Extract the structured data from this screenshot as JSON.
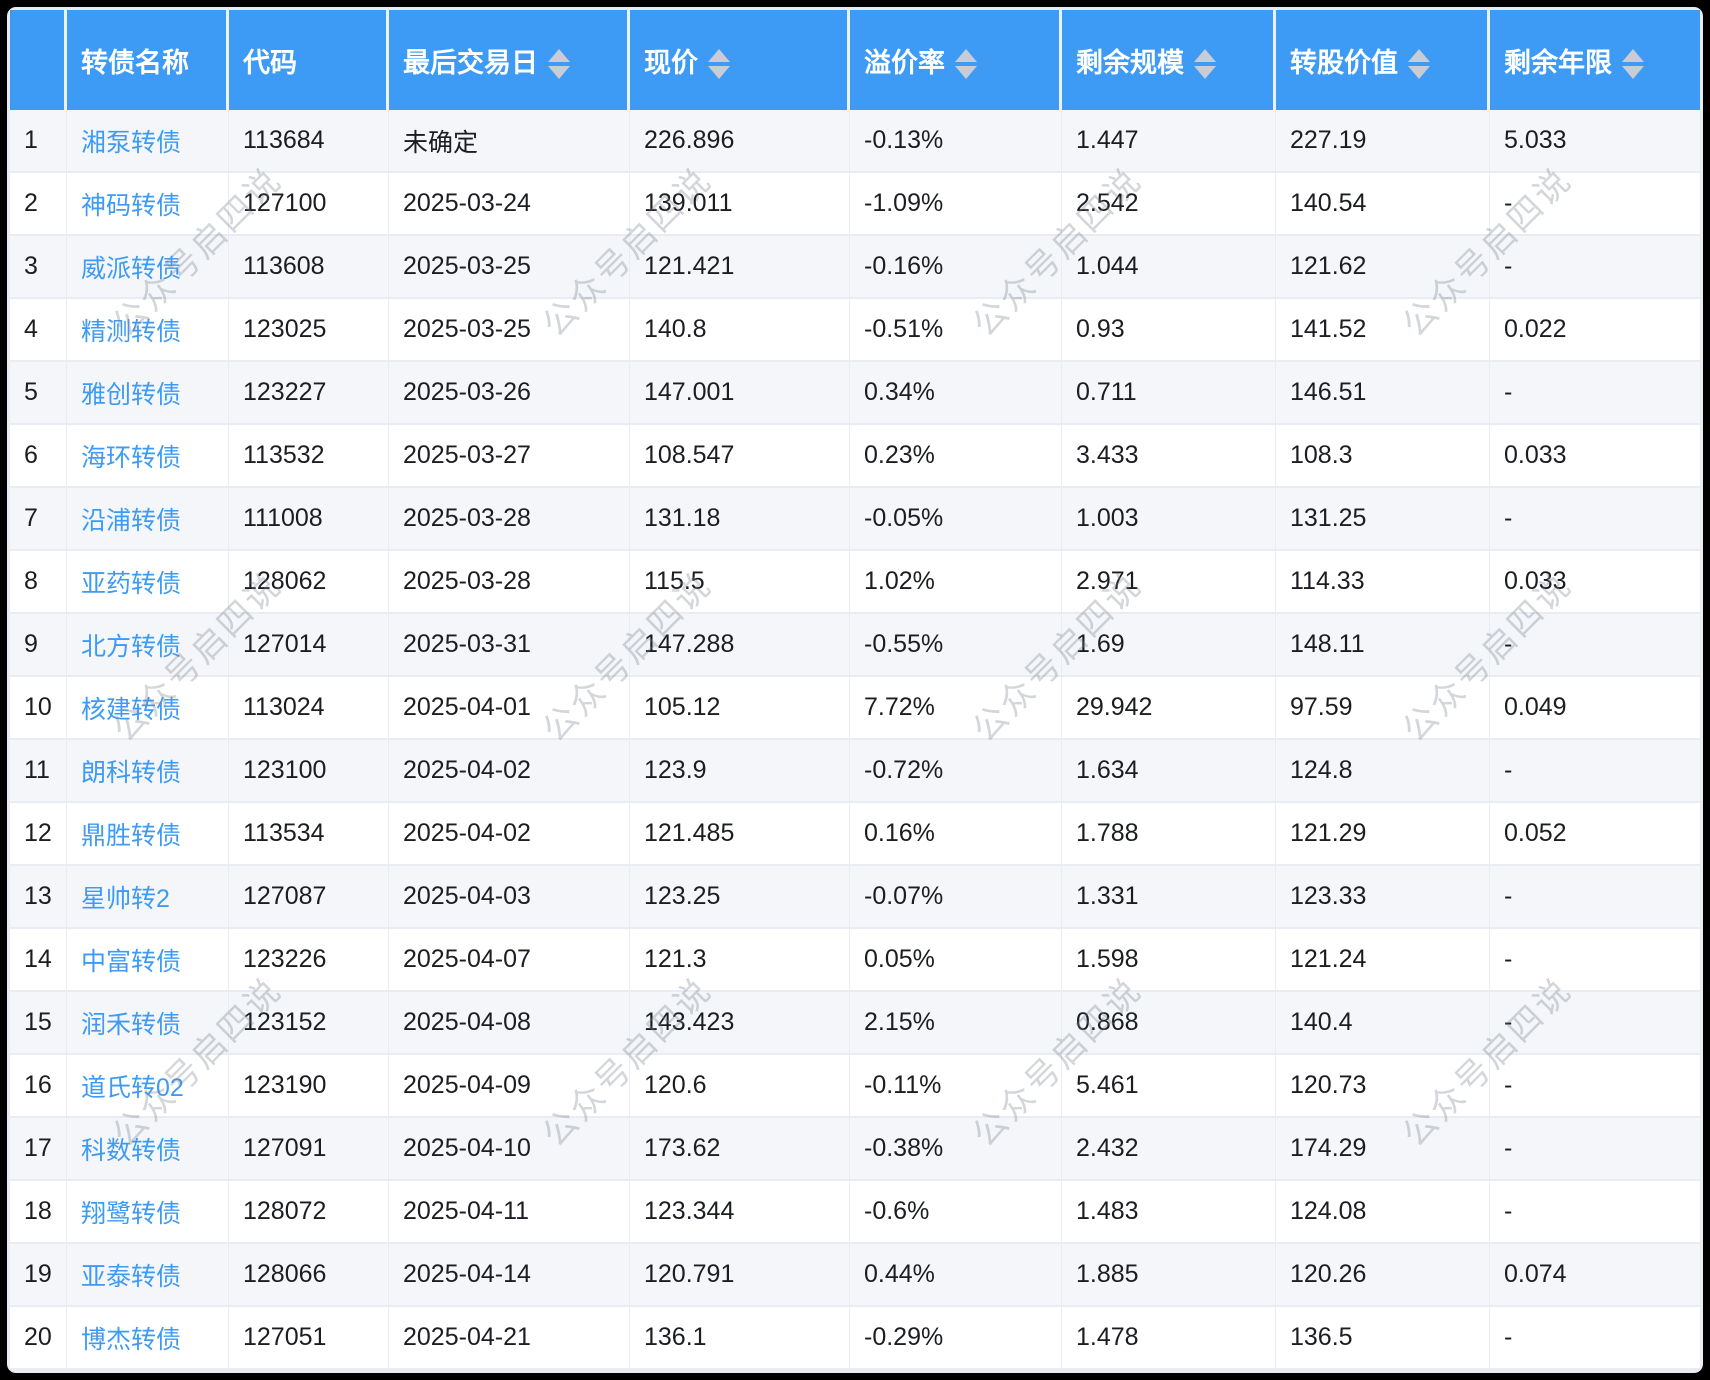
{
  "watermark": {
    "text": "公众号启四说"
  },
  "colors": {
    "header_bg": "#3e9bf5",
    "link": "#3e9bf5",
    "stripe_bg": "#f4f6fa",
    "caret": "#c7ccd5"
  },
  "table": {
    "columns": [
      {
        "label": "",
        "sortable": false
      },
      {
        "label": "转债名称",
        "sortable": false
      },
      {
        "label": "代码",
        "sortable": false
      },
      {
        "label": "最后交易日",
        "sortable": true
      },
      {
        "label": "现价",
        "sortable": true
      },
      {
        "label": "溢价率",
        "sortable": true
      },
      {
        "label": "剩余规模",
        "sortable": true
      },
      {
        "label": "转股价值",
        "sortable": true
      },
      {
        "label": "剩余年限",
        "sortable": true
      }
    ],
    "rows": [
      {
        "index": "1",
        "name": "湘泵转债",
        "code": "113684",
        "last_trade_date": "未确定",
        "price": "226.896",
        "premium_rate": "-0.13%",
        "remaining_size": "1.447",
        "conversion_value": "227.19",
        "remaining_years": "5.033"
      },
      {
        "index": "2",
        "name": "神码转债",
        "code": "127100",
        "last_trade_date": "2025-03-24",
        "price": "139.011",
        "premium_rate": "-1.09%",
        "remaining_size": "2.542",
        "conversion_value": "140.54",
        "remaining_years": "-"
      },
      {
        "index": "3",
        "name": "威派转债",
        "code": "113608",
        "last_trade_date": "2025-03-25",
        "price": "121.421",
        "premium_rate": "-0.16%",
        "remaining_size": "1.044",
        "conversion_value": "121.62",
        "remaining_years": "-"
      },
      {
        "index": "4",
        "name": "精测转债",
        "code": "123025",
        "last_trade_date": "2025-03-25",
        "price": "140.8",
        "premium_rate": "-0.51%",
        "remaining_size": "0.93",
        "conversion_value": "141.52",
        "remaining_years": "0.022"
      },
      {
        "index": "5",
        "name": "雅创转债",
        "code": "123227",
        "last_trade_date": "2025-03-26",
        "price": "147.001",
        "premium_rate": "0.34%",
        "remaining_size": "0.711",
        "conversion_value": "146.51",
        "remaining_years": "-"
      },
      {
        "index": "6",
        "name": "海环转债",
        "code": "113532",
        "last_trade_date": "2025-03-27",
        "price": "108.547",
        "premium_rate": "0.23%",
        "remaining_size": "3.433",
        "conversion_value": "108.3",
        "remaining_years": "0.033"
      },
      {
        "index": "7",
        "name": "沿浦转债",
        "code": "111008",
        "last_trade_date": "2025-03-28",
        "price": "131.18",
        "premium_rate": "-0.05%",
        "remaining_size": "1.003",
        "conversion_value": "131.25",
        "remaining_years": "-"
      },
      {
        "index": "8",
        "name": "亚药转债",
        "code": "128062",
        "last_trade_date": "2025-03-28",
        "price": "115.5",
        "premium_rate": "1.02%",
        "remaining_size": "2.971",
        "conversion_value": "114.33",
        "remaining_years": "0.033"
      },
      {
        "index": "9",
        "name": "北方转债",
        "code": "127014",
        "last_trade_date": "2025-03-31",
        "price": "147.288",
        "premium_rate": "-0.55%",
        "remaining_size": "1.69",
        "conversion_value": "148.11",
        "remaining_years": "-"
      },
      {
        "index": "10",
        "name": "核建转债",
        "code": "113024",
        "last_trade_date": "2025-04-01",
        "price": "105.12",
        "premium_rate": "7.72%",
        "remaining_size": "29.942",
        "conversion_value": "97.59",
        "remaining_years": "0.049"
      },
      {
        "index": "11",
        "name": "朗科转债",
        "code": "123100",
        "last_trade_date": "2025-04-02",
        "price": "123.9",
        "premium_rate": "-0.72%",
        "remaining_size": "1.634",
        "conversion_value": "124.8",
        "remaining_years": "-"
      },
      {
        "index": "12",
        "name": "鼎胜转债",
        "code": "113534",
        "last_trade_date": "2025-04-02",
        "price": "121.485",
        "premium_rate": "0.16%",
        "remaining_size": "1.788",
        "conversion_value": "121.29",
        "remaining_years": "0.052"
      },
      {
        "index": "13",
        "name": "星帅转2",
        "code": "127087",
        "last_trade_date": "2025-04-03",
        "price": "123.25",
        "premium_rate": "-0.07%",
        "remaining_size": "1.331",
        "conversion_value": "123.33",
        "remaining_years": "-"
      },
      {
        "index": "14",
        "name": "中富转债",
        "code": "123226",
        "last_trade_date": "2025-04-07",
        "price": "121.3",
        "premium_rate": "0.05%",
        "remaining_size": "1.598",
        "conversion_value": "121.24",
        "remaining_years": "-"
      },
      {
        "index": "15",
        "name": "润禾转债",
        "code": "123152",
        "last_trade_date": "2025-04-08",
        "price": "143.423",
        "premium_rate": "2.15%",
        "remaining_size": "0.868",
        "conversion_value": "140.4",
        "remaining_years": "-"
      },
      {
        "index": "16",
        "name": "道氏转02",
        "code": "123190",
        "last_trade_date": "2025-04-09",
        "price": "120.6",
        "premium_rate": "-0.11%",
        "remaining_size": "5.461",
        "conversion_value": "120.73",
        "remaining_years": "-"
      },
      {
        "index": "17",
        "name": "科数转债",
        "code": "127091",
        "last_trade_date": "2025-04-10",
        "price": "173.62",
        "premium_rate": "-0.38%",
        "remaining_size": "2.432",
        "conversion_value": "174.29",
        "remaining_years": "-"
      },
      {
        "index": "18",
        "name": "翔鹭转债",
        "code": "128072",
        "last_trade_date": "2025-04-11",
        "price": "123.344",
        "premium_rate": "-0.6%",
        "remaining_size": "1.483",
        "conversion_value": "124.08",
        "remaining_years": "-"
      },
      {
        "index": "19",
        "name": "亚泰转债",
        "code": "128066",
        "last_trade_date": "2025-04-14",
        "price": "120.791",
        "premium_rate": "0.44%",
        "remaining_size": "1.885",
        "conversion_value": "120.26",
        "remaining_years": "0.074"
      },
      {
        "index": "20",
        "name": "博杰转债",
        "code": "127051",
        "last_trade_date": "2025-04-21",
        "price": "136.1",
        "premium_rate": "-0.29%",
        "remaining_size": "1.478",
        "conversion_value": "136.5",
        "remaining_years": "-"
      }
    ]
  }
}
